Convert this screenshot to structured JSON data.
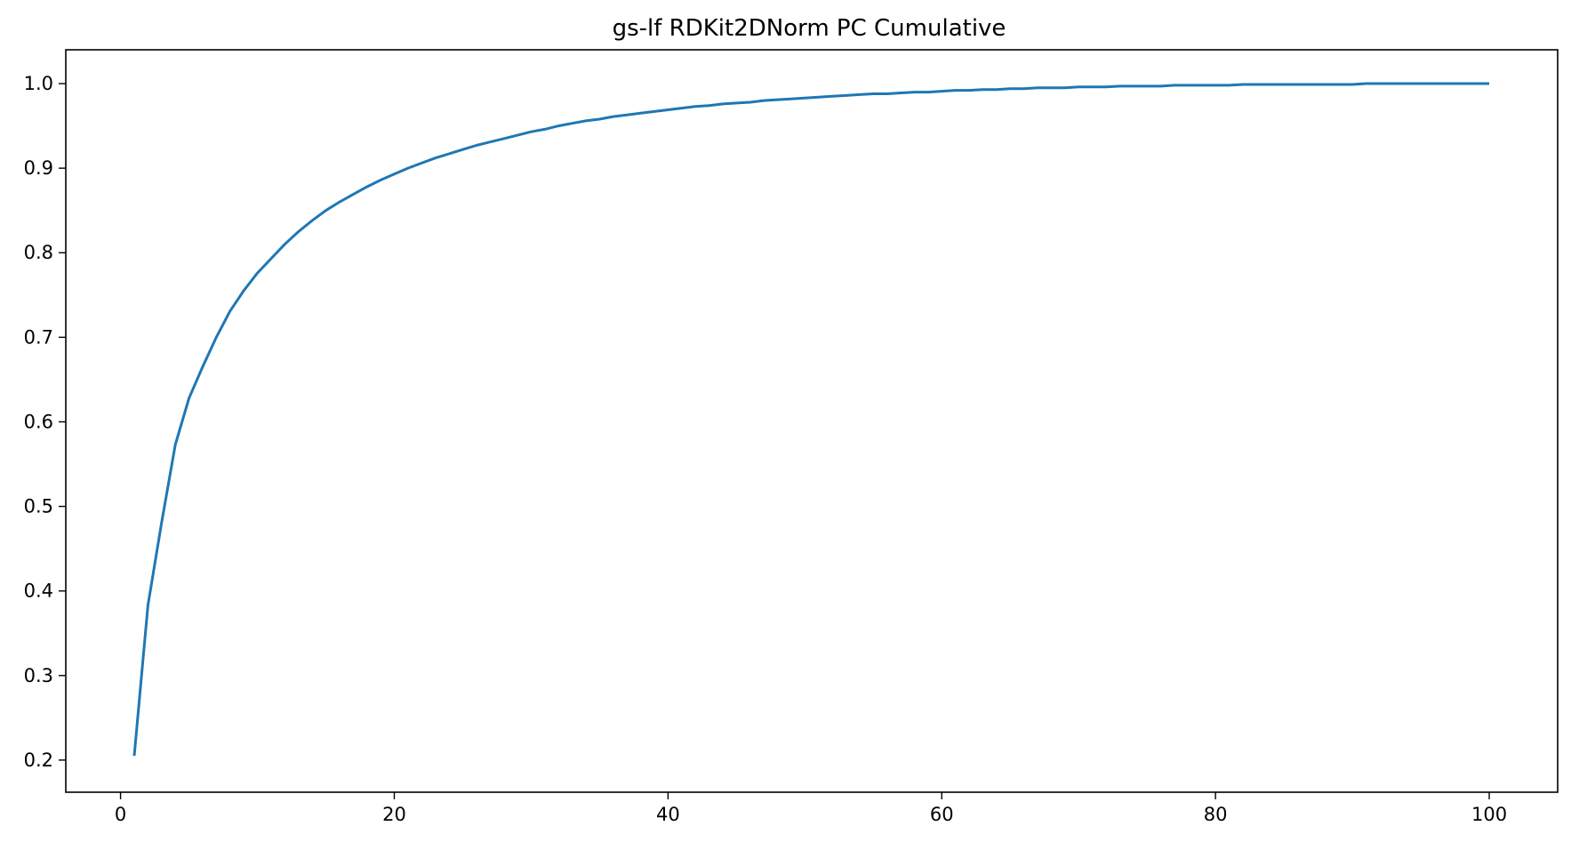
{
  "chart_data": {
    "type": "line",
    "title": "gs-lf RDKit2DNorm PC Cumulative",
    "xlabel": "",
    "ylabel": "",
    "xlim": [
      -4,
      105
    ],
    "ylim": [
      0.162,
      1.04
    ],
    "x_ticks": [
      0,
      20,
      40,
      60,
      80,
      100
    ],
    "x_tick_labels": [
      "0",
      "20",
      "40",
      "60",
      "80",
      "100"
    ],
    "y_ticks": [
      0.2,
      0.3,
      0.4,
      0.5,
      0.6,
      0.7,
      0.8,
      0.9,
      1.0
    ],
    "y_tick_labels": [
      "0.2",
      "0.3",
      "0.4",
      "0.5",
      "0.6",
      "0.7",
      "0.8",
      "0.9",
      "1.0"
    ],
    "grid": false,
    "legend": "none",
    "series": [
      {
        "color": "#1f77b4",
        "x": [
          1,
          2,
          3,
          4,
          5,
          6,
          7,
          8,
          9,
          10,
          11,
          12,
          13,
          14,
          15,
          16,
          17,
          18,
          19,
          20,
          21,
          22,
          23,
          24,
          25,
          26,
          27,
          28,
          29,
          30,
          31,
          32,
          33,
          34,
          35,
          36,
          37,
          38,
          39,
          40,
          41,
          42,
          43,
          44,
          45,
          46,
          47,
          48,
          49,
          50,
          51,
          52,
          53,
          54,
          55,
          56,
          57,
          58,
          59,
          60,
          61,
          62,
          63,
          64,
          65,
          66,
          67,
          68,
          69,
          70,
          71,
          72,
          73,
          74,
          75,
          76,
          77,
          78,
          79,
          80,
          81,
          82,
          83,
          84,
          85,
          86,
          87,
          88,
          89,
          90,
          91,
          92,
          93,
          94,
          95,
          96,
          97,
          98,
          99,
          100
        ],
        "y": [
          0.205,
          0.383,
          0.481,
          0.573,
          0.628,
          0.665,
          0.7,
          0.731,
          0.755,
          0.776,
          0.793,
          0.81,
          0.825,
          0.838,
          0.85,
          0.86,
          0.869,
          0.878,
          0.886,
          0.893,
          0.9,
          0.906,
          0.912,
          0.917,
          0.922,
          0.927,
          0.931,
          0.935,
          0.939,
          0.943,
          0.946,
          0.95,
          0.953,
          0.956,
          0.958,
          0.961,
          0.963,
          0.965,
          0.967,
          0.969,
          0.971,
          0.973,
          0.974,
          0.976,
          0.977,
          0.978,
          0.98,
          0.981,
          0.982,
          0.983,
          0.984,
          0.985,
          0.986,
          0.987,
          0.988,
          0.988,
          0.989,
          0.99,
          0.99,
          0.991,
          0.992,
          0.992,
          0.993,
          0.993,
          0.994,
          0.994,
          0.995,
          0.995,
          0.995,
          0.996,
          0.996,
          0.996,
          0.997,
          0.997,
          0.997,
          0.997,
          0.998,
          0.998,
          0.998,
          0.998,
          0.998,
          0.999,
          0.999,
          0.999,
          0.999,
          0.999,
          0.999,
          0.999,
          0.999,
          0.999,
          1.0,
          1.0,
          1.0,
          1.0,
          1.0,
          1.0,
          1.0,
          1.0,
          1.0,
          1.0
        ]
      }
    ]
  }
}
